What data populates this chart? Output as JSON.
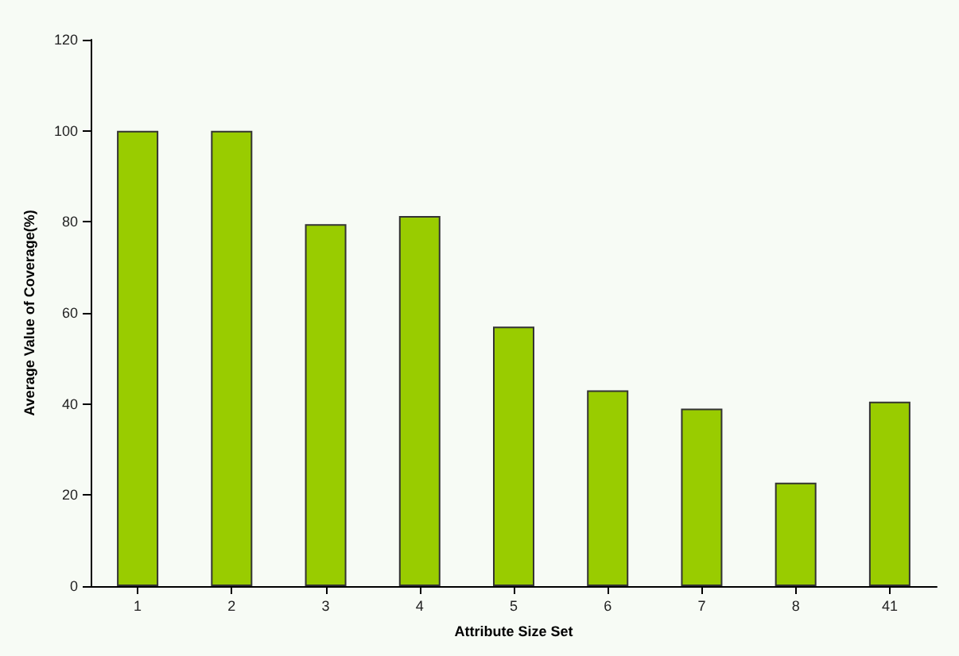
{
  "chart_data": {
    "type": "bar",
    "xlabel": "Attribute Size Set",
    "ylabel": "Average Value of Coverage(%)",
    "categories": [
      "1",
      "2",
      "3",
      "4",
      "5",
      "6",
      "7",
      "8",
      "41"
    ],
    "values": [
      100,
      100,
      79.5,
      81.3,
      57,
      43,
      39,
      22.7,
      40.5
    ],
    "color": "#99cc00",
    "ylim": [
      0,
      120
    ],
    "yticks": [
      0,
      20,
      40,
      60,
      80,
      100,
      120
    ],
    "grid": false
  }
}
